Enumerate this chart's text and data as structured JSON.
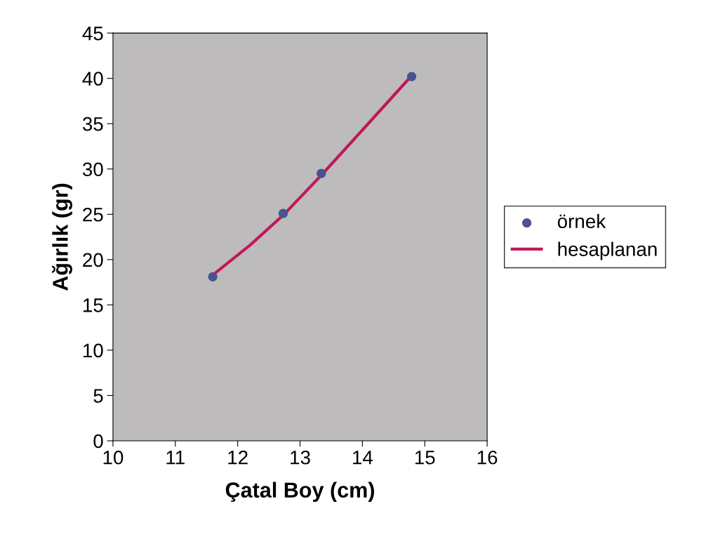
{
  "chart_data": {
    "type": "scatter",
    "xlabel": "Çatal Boy (cm)",
    "ylabel": "Ağırlık (gr)",
    "xlim": [
      10,
      16
    ],
    "xticks": [
      10,
      11,
      12,
      13,
      14,
      15,
      16
    ],
    "ylim": [
      0,
      45
    ],
    "yticks": [
      0,
      5,
      10,
      15,
      20,
      25,
      30,
      35,
      40,
      45
    ],
    "grid": false,
    "legend": "right",
    "series": [
      {
        "name": "örnek",
        "color": "#4a5290",
        "marker": "circle",
        "x": [
          11.6,
          12.73,
          13.34,
          14.79
        ],
        "values": [
          18.1,
          25.1,
          29.5,
          40.2
        ]
      },
      {
        "name": "hesaplanan",
        "type": "line",
        "color": "#c0185a",
        "marker": "none",
        "x": [
          11.6,
          12.2,
          12.73,
          13.34,
          14.0,
          14.79
        ],
        "values": [
          18.3,
          21.6,
          24.9,
          29.3,
          34.3,
          40.3
        ]
      }
    ]
  }
}
